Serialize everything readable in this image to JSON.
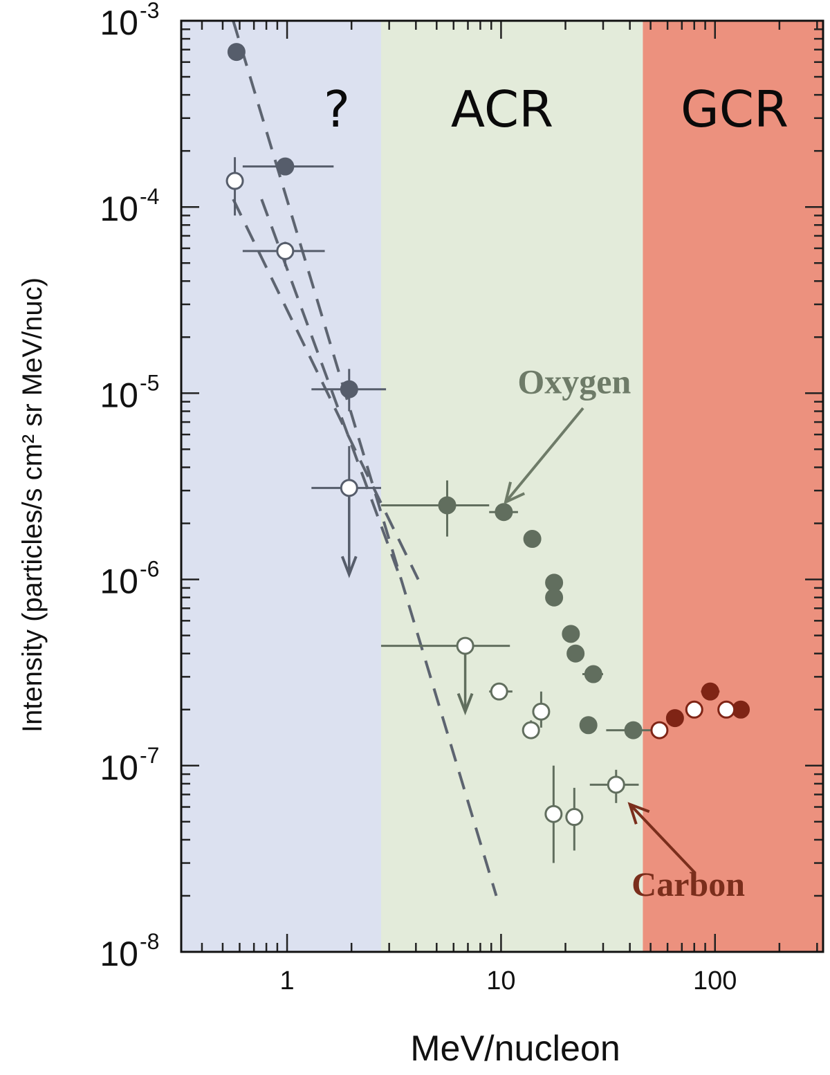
{
  "chart_data": {
    "type": "scatter",
    "xlabel": "MeV/nucleon",
    "ylabel": "Intensity (particles/s cm² sr MeV/nuc)",
    "x_scale": "log",
    "y_scale": "log",
    "xlim": [
      0.32,
      320
    ],
    "ylim": [
      1e-08,
      0.001
    ],
    "grid": false,
    "x_ticks": [
      {
        "value": 1,
        "label": "1"
      },
      {
        "value": 10,
        "label": "10"
      },
      {
        "value": 100,
        "label": "100"
      }
    ],
    "y_ticks": [
      {
        "value": 0.001,
        "base": "10",
        "exp": "-3"
      },
      {
        "value": 0.0001,
        "base": "10",
        "exp": "-4"
      },
      {
        "value": 1e-05,
        "base": "10",
        "exp": "-5"
      },
      {
        "value": 1e-06,
        "base": "10",
        "exp": "-6"
      },
      {
        "value": 1e-07,
        "base": "10",
        "exp": "-7"
      },
      {
        "value": 1e-08,
        "base": "10",
        "exp": "-8"
      }
    ],
    "regions": [
      {
        "label": "?",
        "x0": 0.32,
        "x1": 2.75,
        "color": "#dce1f0"
      },
      {
        "label": "ACR",
        "x0": 2.75,
        "x1": 46,
        "color": "#e3ebda"
      },
      {
        "label": "GCR",
        "x0": 46,
        "x1": 320,
        "color": "#ec917e"
      }
    ],
    "annotations": [
      {
        "label": "Oxygen",
        "x": 22,
        "y": 1e-05,
        "arrow_to": [
          10.5,
          2.6e-06
        ],
        "color": "#6e7b68"
      },
      {
        "label": "Carbon",
        "x": 75,
        "y": 2e-08,
        "arrow_to": [
          40,
          6.2e-08
        ],
        "color": "#7a2e1c"
      }
    ],
    "fit_lines": [
      {
        "name": "",
        "points": [
          [
            0.56,
            0.001
          ],
          [
            9.5,
            2e-08
          ]
        ]
      },
      {
        "name": "",
        "points": [
          [
            0.56,
            0.00011
          ],
          [
            4.1,
            1e-06
          ]
        ]
      },
      {
        "name": "",
        "points": [
          [
            0.76,
            0.00011
          ],
          [
            3.4,
            1e-06
          ]
        ]
      }
    ],
    "series": [
      {
        "name": "Oxygen",
        "marker": "filled",
        "points": [
          {
            "x": 0.58,
            "y": 0.00068
          },
          {
            "x": 0.98,
            "y": 0.000165,
            "xerr": [
              0.62,
              1.65
            ]
          },
          {
            "x": 1.95,
            "y": 1.05e-05,
            "xerr": [
              1.3,
              2.9
            ],
            "yerr": [
              8e-06,
              1.35e-05
            ]
          },
          {
            "x": 5.6,
            "y": 2.5e-06,
            "xerr": [
              2.75,
              8.8
            ],
            "yerr": [
              1.7e-06,
              3.4e-06
            ]
          },
          {
            "x": 10.3,
            "y": 2.3e-06,
            "xerr": [
              8.8,
              12.0
            ]
          },
          {
            "x": 14.0,
            "y": 1.65e-06
          },
          {
            "x": 17.7,
            "y": 9.6e-07
          },
          {
            "x": 17.7,
            "y": 8e-07
          },
          {
            "x": 21.2,
            "y": 5.1e-07
          },
          {
            "x": 22.3,
            "y": 4e-07
          },
          {
            "x": 27.0,
            "y": 3.1e-07,
            "xerr": [
              24.0,
              30.0
            ]
          },
          {
            "x": 25.6,
            "y": 1.65e-07
          },
          {
            "x": 41.5,
            "y": 1.55e-07,
            "xerr": [
              31.0,
              52.0
            ]
          },
          {
            "x": 65.0,
            "y": 1.8e-07,
            "xerr": [
              60.0,
              70.0
            ]
          },
          {
            "x": 95.0,
            "y": 2.5e-07,
            "xerr": [
              86.0,
              105.0
            ]
          },
          {
            "x": 132.0,
            "y": 2e-07,
            "xerr": [
              122.0,
              142.0
            ]
          }
        ]
      },
      {
        "name": "Carbon",
        "marker": "open",
        "points": [
          {
            "x": 0.57,
            "y": 0.000138,
            "yerr": [
              9e-05,
              0.000185
            ]
          },
          {
            "x": 0.98,
            "y": 5.8e-05,
            "xerr": [
              0.62,
              1.5
            ],
            "yerr": [
              4.8e-05,
              6.5e-05
            ]
          },
          {
            "x": 1.95,
            "y": 3.1e-06,
            "xerr": [
              1.3,
              2.75
            ],
            "yerr": [
              1.2e-06,
              5.2e-06
            ],
            "upper_limit": true
          },
          {
            "x": 6.8,
            "y": 4.4e-07,
            "xerr": [
              2.75,
              11.0
            ],
            "upper_limit": true
          },
          {
            "x": 9.8,
            "y": 2.5e-07,
            "xerr": [
              8.8,
              11.3
            ]
          },
          {
            "x": 13.8,
            "y": 1.55e-07,
            "yerr": [
              1.4e-07,
              1.75e-07
            ]
          },
          {
            "x": 15.4,
            "y": 1.95e-07,
            "yerr": [
              1.6e-07,
              2.5e-07
            ]
          },
          {
            "x": 17.6,
            "y": 5.5e-08,
            "yerr": [
              3e-08,
              1e-07
            ]
          },
          {
            "x": 22.0,
            "y": 5.3e-08,
            "yerr": [
              3.5e-08,
              7.6e-08
            ]
          },
          {
            "x": 34.5,
            "y": 7.9e-08,
            "xerr": [
              26.0,
              44.0
            ],
            "yerr": [
              6.3e-08,
              9.5e-08
            ]
          },
          {
            "x": 55.0,
            "y": 1.55e-07
          },
          {
            "x": 80.0,
            "y": 2e-07,
            "xerr": [
              73.0,
              87.0
            ]
          },
          {
            "x": 113.0,
            "y": 2e-07,
            "xerr": [
              103.0,
              123.0
            ]
          }
        ]
      }
    ]
  }
}
